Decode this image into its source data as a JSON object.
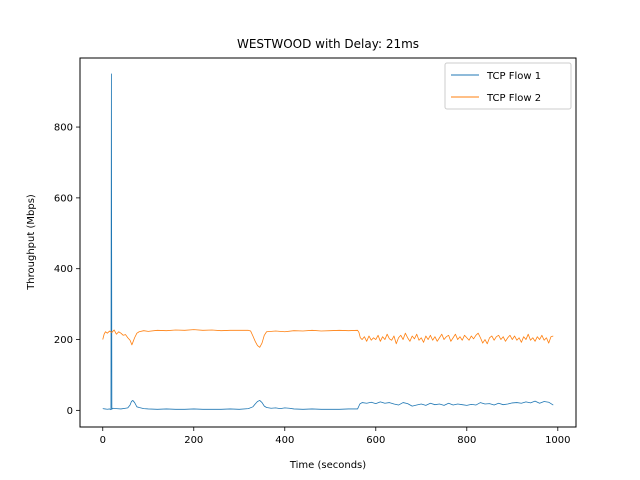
{
  "chart_data": {
    "type": "line",
    "title": "WESTWOOD with Delay: 21ms",
    "xlabel": "Time (seconds)",
    "ylabel": "Throughput (Mbps)",
    "xlim": [
      -50,
      1040
    ],
    "ylim": [
      -47,
      995
    ],
    "xticks": [
      0,
      200,
      400,
      600,
      800,
      1000
    ],
    "yticks": [
      0,
      200,
      400,
      600,
      800
    ],
    "grid": false,
    "legend_position": "top-right",
    "series": [
      {
        "name": "TCP Flow 1",
        "color": "#1f77b4",
        "points": [
          [
            0,
            5
          ],
          [
            5,
            4
          ],
          [
            10,
            3
          ],
          [
            15,
            4
          ],
          [
            18,
            2
          ],
          [
            19,
            950
          ],
          [
            20,
            3
          ],
          [
            22,
            6
          ],
          [
            30,
            5
          ],
          [
            40,
            4
          ],
          [
            50,
            6
          ],
          [
            55,
            7
          ],
          [
            60,
            15
          ],
          [
            63,
            25
          ],
          [
            66,
            28
          ],
          [
            70,
            22
          ],
          [
            75,
            10
          ],
          [
            80,
            8
          ],
          [
            90,
            5
          ],
          [
            100,
            4
          ],
          [
            120,
            3
          ],
          [
            140,
            4
          ],
          [
            160,
            3
          ],
          [
            180,
            3
          ],
          [
            200,
            4
          ],
          [
            220,
            3
          ],
          [
            240,
            3
          ],
          [
            260,
            3
          ],
          [
            280,
            4
          ],
          [
            300,
            3
          ],
          [
            320,
            5
          ],
          [
            330,
            10
          ],
          [
            335,
            18
          ],
          [
            340,
            25
          ],
          [
            345,
            28
          ],
          [
            350,
            22
          ],
          [
            355,
            12
          ],
          [
            360,
            8
          ],
          [
            370,
            6
          ],
          [
            380,
            7
          ],
          [
            390,
            5
          ],
          [
            400,
            7
          ],
          [
            410,
            6
          ],
          [
            420,
            4
          ],
          [
            440,
            3
          ],
          [
            460,
            4
          ],
          [
            480,
            3
          ],
          [
            500,
            3
          ],
          [
            520,
            3
          ],
          [
            540,
            4
          ],
          [
            560,
            4
          ],
          [
            565,
            18
          ],
          [
            570,
            22
          ],
          [
            580,
            20
          ],
          [
            590,
            23
          ],
          [
            600,
            19
          ],
          [
            610,
            24
          ],
          [
            620,
            20
          ],
          [
            630,
            22
          ],
          [
            640,
            18
          ],
          [
            650,
            15
          ],
          [
            660,
            22
          ],
          [
            670,
            19
          ],
          [
            680,
            12
          ],
          [
            690,
            15
          ],
          [
            700,
            18
          ],
          [
            710,
            14
          ],
          [
            720,
            20
          ],
          [
            730,
            16
          ],
          [
            740,
            18
          ],
          [
            750,
            14
          ],
          [
            760,
            20
          ],
          [
            770,
            15
          ],
          [
            780,
            18
          ],
          [
            790,
            16
          ],
          [
            800,
            14
          ],
          [
            810,
            17
          ],
          [
            820,
            15
          ],
          [
            830,
            22
          ],
          [
            840,
            18
          ],
          [
            850,
            19
          ],
          [
            860,
            15
          ],
          [
            870,
            20
          ],
          [
            880,
            16
          ],
          [
            890,
            18
          ],
          [
            900,
            21
          ],
          [
            910,
            22
          ],
          [
            920,
            20
          ],
          [
            930,
            24
          ],
          [
            940,
            21
          ],
          [
            950,
            26
          ],
          [
            960,
            20
          ],
          [
            970,
            25
          ],
          [
            980,
            23
          ],
          [
            990,
            15
          ]
        ]
      },
      {
        "name": "TCP Flow 2",
        "color": "#ff7f0e",
        "points": [
          [
            0,
            200
          ],
          [
            3,
            215
          ],
          [
            6,
            222
          ],
          [
            10,
            218
          ],
          [
            15,
            224
          ],
          [
            20,
            220
          ],
          [
            25,
            227
          ],
          [
            30,
            215
          ],
          [
            35,
            222
          ],
          [
            40,
            218
          ],
          [
            45,
            212
          ],
          [
            50,
            214
          ],
          [
            55,
            205
          ],
          [
            60,
            198
          ],
          [
            64,
            185
          ],
          [
            67,
            195
          ],
          [
            70,
            205
          ],
          [
            75,
            218
          ],
          [
            80,
            222
          ],
          [
            90,
            225
          ],
          [
            100,
            223
          ],
          [
            120,
            226
          ],
          [
            140,
            225
          ],
          [
            160,
            227
          ],
          [
            180,
            226
          ],
          [
            200,
            228
          ],
          [
            220,
            226
          ],
          [
            240,
            227
          ],
          [
            260,
            225
          ],
          [
            280,
            226
          ],
          [
            300,
            226
          ],
          [
            320,
            226
          ],
          [
            325,
            224
          ],
          [
            330,
            210
          ],
          [
            335,
            195
          ],
          [
            340,
            183
          ],
          [
            345,
            178
          ],
          [
            350,
            190
          ],
          [
            355,
            212
          ],
          [
            360,
            222
          ],
          [
            380,
            224
          ],
          [
            400,
            222
          ],
          [
            420,
            225
          ],
          [
            440,
            224
          ],
          [
            460,
            226
          ],
          [
            480,
            224
          ],
          [
            500,
            225
          ],
          [
            520,
            226
          ],
          [
            540,
            225
          ],
          [
            560,
            226
          ],
          [
            563,
            220
          ],
          [
            566,
            205
          ],
          [
            570,
            200
          ],
          [
            575,
            208
          ],
          [
            580,
            195
          ],
          [
            585,
            210
          ],
          [
            590,
            198
          ],
          [
            595,
            205
          ],
          [
            600,
            200
          ],
          [
            605,
            212
          ],
          [
            610,
            195
          ],
          [
            615,
            208
          ],
          [
            620,
            200
          ],
          [
            625,
            215
          ],
          [
            630,
            202
          ],
          [
            635,
            198
          ],
          [
            640,
            210
          ],
          [
            645,
            188
          ],
          [
            650,
            205
          ],
          [
            655,
            212
          ],
          [
            660,
            200
          ],
          [
            665,
            218
          ],
          [
            670,
            205
          ],
          [
            675,
            195
          ],
          [
            680,
            210
          ],
          [
            685,
            202
          ],
          [
            690,
            215
          ],
          [
            695,
            198
          ],
          [
            700,
            205
          ],
          [
            705,
            192
          ],
          [
            710,
            210
          ],
          [
            715,
            200
          ],
          [
            720,
            212
          ],
          [
            725,
            198
          ],
          [
            730,
            208
          ],
          [
            735,
            195
          ],
          [
            740,
            205
          ],
          [
            745,
            215
          ],
          [
            750,
            200
          ],
          [
            755,
            208
          ],
          [
            760,
            212
          ],
          [
            765,
            195
          ],
          [
            770,
            205
          ],
          [
            775,
            215
          ],
          [
            780,
            200
          ],
          [
            785,
            208
          ],
          [
            790,
            198
          ],
          [
            795,
            212
          ],
          [
            800,
            205
          ],
          [
            805,
            198
          ],
          [
            810,
            210
          ],
          [
            815,
            202
          ],
          [
            820,
            212
          ],
          [
            825,
            218
          ],
          [
            830,
            205
          ],
          [
            835,
            190
          ],
          [
            840,
            200
          ],
          [
            845,
            188
          ],
          [
            850,
            205
          ],
          [
            855,
            210
          ],
          [
            860,
            198
          ],
          [
            865,
            208
          ],
          [
            870,
            212
          ],
          [
            875,
            200
          ],
          [
            880,
            208
          ],
          [
            885,
            195
          ],
          [
            890,
            205
          ],
          [
            895,
            212
          ],
          [
            900,
            200
          ],
          [
            905,
            210
          ],
          [
            910,
            198
          ],
          [
            915,
            205
          ],
          [
            920,
            192
          ],
          [
            925,
            208
          ],
          [
            930,
            200
          ],
          [
            935,
            215
          ],
          [
            940,
            198
          ],
          [
            945,
            205
          ],
          [
            950,
            195
          ],
          [
            955,
            208
          ],
          [
            960,
            200
          ],
          [
            965,
            212
          ],
          [
            970,
            198
          ],
          [
            975,
            205
          ],
          [
            980,
            190
          ],
          [
            985,
            208
          ],
          [
            990,
            210
          ]
        ]
      }
    ]
  }
}
